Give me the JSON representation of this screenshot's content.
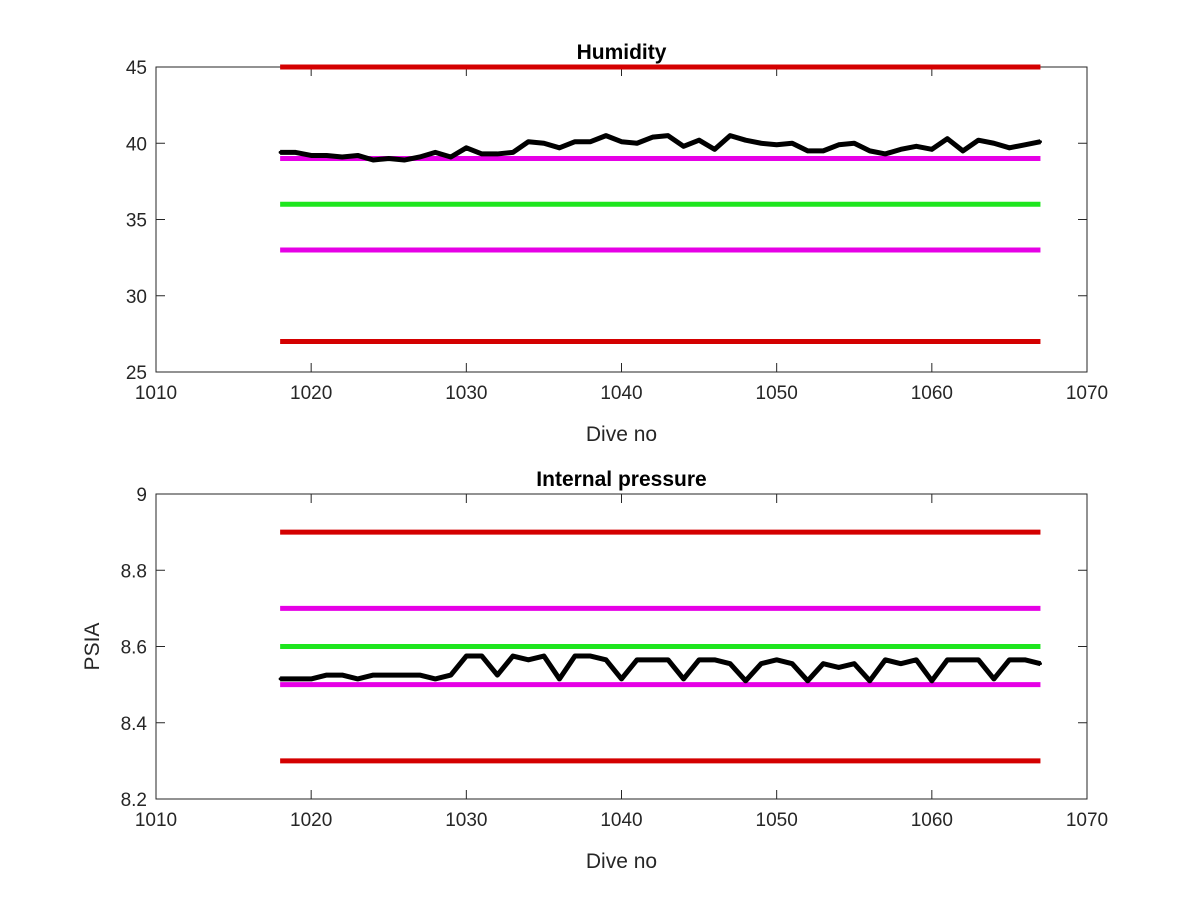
{
  "chart_data": [
    {
      "type": "line",
      "title": "Humidity",
      "xlabel": "Dive no",
      "ylabel": "",
      "xlim": [
        1010,
        1070
      ],
      "ylim": [
        25,
        45
      ],
      "xticks": [
        1010,
        1020,
        1030,
        1040,
        1050,
        1060,
        1070
      ],
      "yticks": [
        25,
        30,
        35,
        40,
        45
      ],
      "xtick_labels": [
        "1010",
        "1020",
        "1030",
        "1040",
        "1050",
        "1060",
        "1070"
      ],
      "ytick_labels": [
        "25",
        "30",
        "35",
        "40",
        "45"
      ],
      "grid": false,
      "reference_lines": [
        {
          "y": 45,
          "x": [
            1018,
            1067
          ],
          "color": "#d40000"
        },
        {
          "y": 39,
          "x": [
            1018,
            1067
          ],
          "color": "#e600e6"
        },
        {
          "y": 36,
          "x": [
            1018,
            1067
          ],
          "color": "#1ee61e"
        },
        {
          "y": 33,
          "x": [
            1018,
            1067
          ],
          "color": "#e600e6"
        },
        {
          "y": 27,
          "x": [
            1018,
            1067
          ],
          "color": "#d40000"
        }
      ],
      "series": [
        {
          "color": "#000000",
          "x": [
            1018,
            1019,
            1020,
            1021,
            1022,
            1023,
            1024,
            1025,
            1026,
            1027,
            1028,
            1029,
            1030,
            1031,
            1032,
            1033,
            1034,
            1035,
            1036,
            1037,
            1038,
            1039,
            1040,
            1041,
            1042,
            1043,
            1044,
            1045,
            1046,
            1047,
            1048,
            1049,
            1050,
            1051,
            1052,
            1053,
            1054,
            1055,
            1056,
            1057,
            1058,
            1059,
            1060,
            1061,
            1062,
            1063,
            1064,
            1065,
            1066,
            1067
          ],
          "y": [
            39.4,
            39.4,
            39.2,
            39.2,
            39.1,
            39.2,
            38.9,
            39.0,
            38.9,
            39.1,
            39.4,
            39.1,
            39.7,
            39.3,
            39.3,
            39.4,
            40.1,
            40.0,
            39.7,
            40.1,
            40.1,
            40.5,
            40.1,
            40.0,
            40.4,
            40.5,
            39.8,
            40.2,
            39.6,
            40.5,
            40.2,
            40.0,
            39.9,
            40.0,
            39.5,
            39.5,
            39.9,
            40.0,
            39.5,
            39.3,
            39.6,
            39.8,
            39.6,
            40.3,
            39.5,
            40.2,
            40.0,
            39.7,
            39.9,
            40.1
          ]
        }
      ]
    },
    {
      "type": "line",
      "title": "Internal pressure",
      "xlabel": "Dive no",
      "ylabel": "PSIA",
      "xlim": [
        1010,
        1070
      ],
      "ylim": [
        8.2,
        9.0
      ],
      "xticks": [
        1010,
        1020,
        1030,
        1040,
        1050,
        1060,
        1070
      ],
      "yticks": [
        8.2,
        8.4,
        8.6,
        8.8,
        9.0
      ],
      "xtick_labels": [
        "1010",
        "1020",
        "1030",
        "1040",
        "1050",
        "1060",
        "1070"
      ],
      "ytick_labels": [
        "8.2",
        "8.4",
        "8.6",
        "8.8",
        "9"
      ],
      "grid": false,
      "reference_lines": [
        {
          "y": 8.9,
          "x": [
            1018,
            1067
          ],
          "color": "#d40000"
        },
        {
          "y": 8.7,
          "x": [
            1018,
            1067
          ],
          "color": "#e600e6"
        },
        {
          "y": 8.6,
          "x": [
            1018,
            1067
          ],
          "color": "#1ee61e"
        },
        {
          "y": 8.5,
          "x": [
            1018,
            1067
          ],
          "color": "#e600e6"
        },
        {
          "y": 8.3,
          "x": [
            1018,
            1067
          ],
          "color": "#d40000"
        }
      ],
      "series": [
        {
          "color": "#000000",
          "x": [
            1018,
            1019,
            1020,
            1021,
            1022,
            1023,
            1024,
            1025,
            1026,
            1027,
            1028,
            1029,
            1030,
            1031,
            1032,
            1033,
            1034,
            1035,
            1036,
            1037,
            1038,
            1039,
            1040,
            1041,
            1042,
            1043,
            1044,
            1045,
            1046,
            1047,
            1048,
            1049,
            1050,
            1051,
            1052,
            1053,
            1054,
            1055,
            1056,
            1057,
            1058,
            1059,
            1060,
            1061,
            1062,
            1063,
            1064,
            1065,
            1066,
            1067
          ],
          "y": [
            8.515,
            8.515,
            8.515,
            8.525,
            8.525,
            8.515,
            8.525,
            8.525,
            8.525,
            8.525,
            8.515,
            8.525,
            8.575,
            8.575,
            8.525,
            8.575,
            8.565,
            8.575,
            8.515,
            8.575,
            8.575,
            8.565,
            8.515,
            8.565,
            8.565,
            8.565,
            8.515,
            8.565,
            8.565,
            8.555,
            8.51,
            8.555,
            8.565,
            8.555,
            8.51,
            8.555,
            8.545,
            8.555,
            8.51,
            8.565,
            8.555,
            8.565,
            8.51,
            8.565,
            8.565,
            8.565,
            8.515,
            8.565,
            8.565,
            8.555
          ]
        }
      ]
    }
  ]
}
